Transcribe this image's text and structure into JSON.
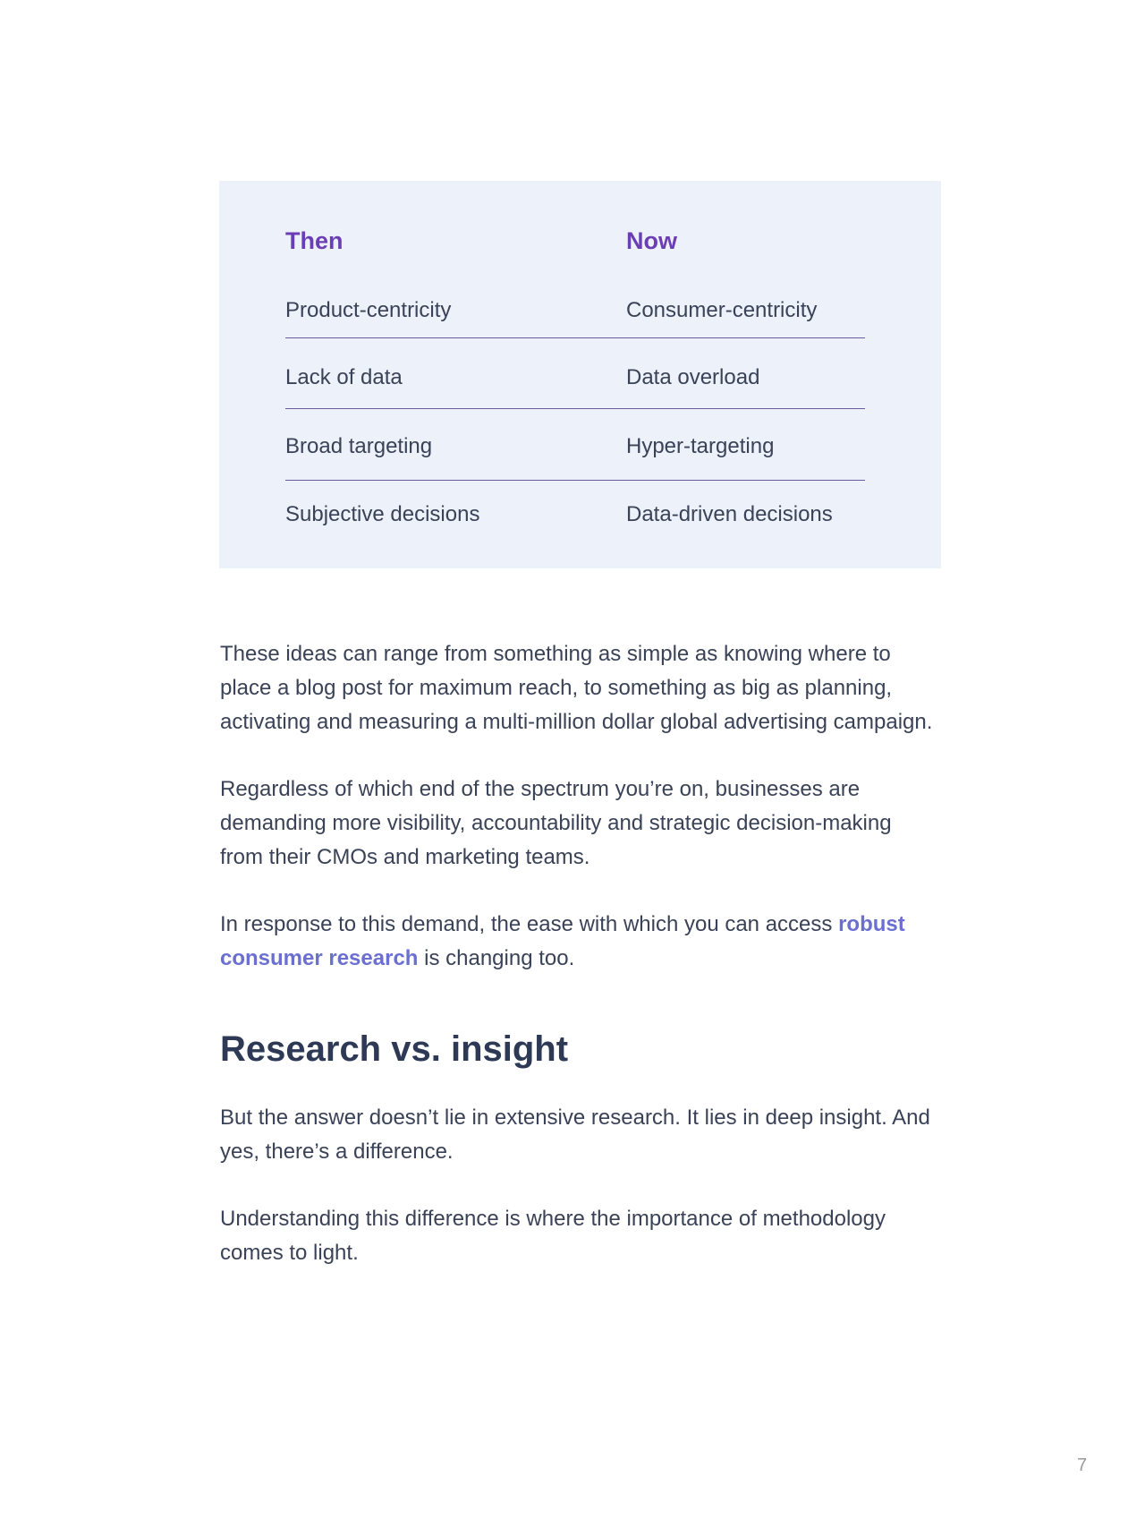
{
  "comparison_table": {
    "headers": [
      "Then",
      "Now"
    ],
    "rows": [
      [
        "Product-centricity",
        "Consumer-centricity"
      ],
      [
        "Lack of data",
        "Data overload"
      ],
      [
        "Broad targeting",
        "Hyper-targeting"
      ],
      [
        "Subjective decisions",
        "Data-driven decisions"
      ]
    ],
    "header_color": "#6b3fb3",
    "background_color": "#edf1fa"
  },
  "body": {
    "p1": "These ideas can range from something as simple as knowing where to place a blog post for maximum reach, to something as big as planning, activating and measuring a multi-million dollar global advertising campaign.",
    "p2": "Regardless of which end of the spectrum you’re on, businesses are demanding more visibility, accountability and strategic decision-making from their CMOs and marketing teams.",
    "p3_before": "In response to this demand, the ease with which you can access ",
    "p3_link": "robust consumer research",
    "p3_after": " is changing too.",
    "heading": "Research vs. insight",
    "p4": "But the answer doesn’t lie in extensive research. It lies in deep insight. And yes, there’s a difference.",
    "p5": "Understanding this difference is where the importance of methodology comes to light.",
    "link_color": "#6a6fd0"
  },
  "page_number": "7"
}
